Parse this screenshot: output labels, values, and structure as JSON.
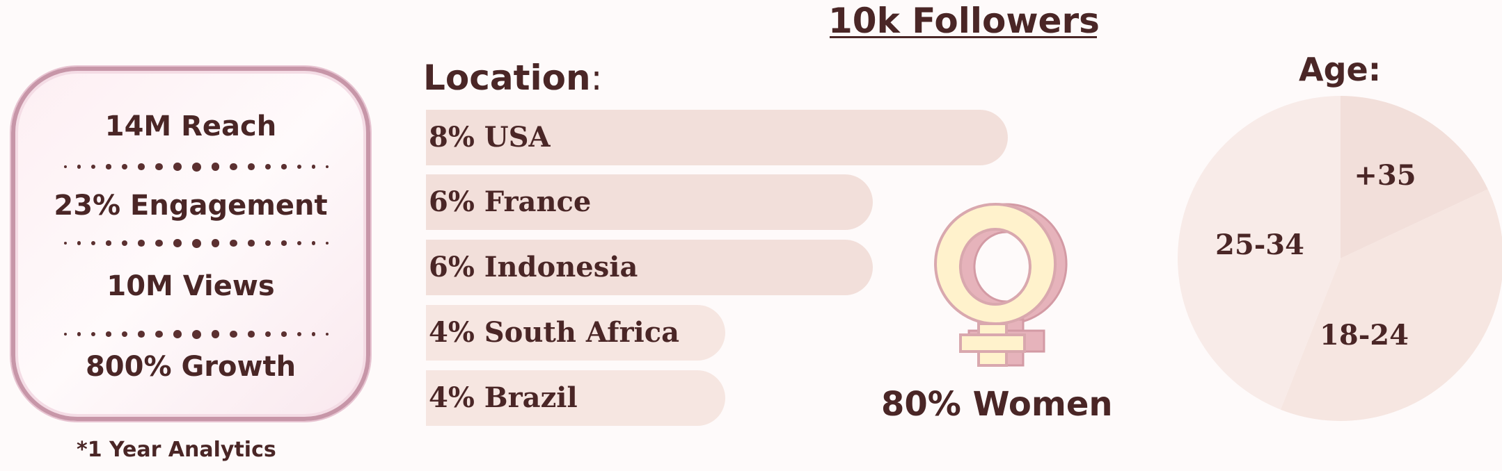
{
  "title": "10k Followers",
  "stats": {
    "reach": "14M Reach",
    "engagement": "23% Engagement",
    "views": "10M Views",
    "growth": "800% Growth",
    "footnote": "*1 Year Analytics"
  },
  "location": {
    "label": "Location",
    "colon": ":"
  },
  "women": {
    "label": "80% Women",
    "icon": "female-symbol-icon"
  },
  "age": {
    "label": "Age:"
  },
  "colors": {
    "text": "#4a2626",
    "bar_dark": "#f2dfda",
    "bar_light": "#f6e6e1",
    "pie_1": "#f2dfda",
    "pie_2": "#f6e6e1",
    "pie_3": "#f8ebe8",
    "symbol_fill": "#fff2cc",
    "symbol_outline": "#d9a8ae"
  },
  "chart_data": [
    {
      "type": "bar",
      "orientation": "horizontal",
      "title": "Location:",
      "categories": [
        "USA",
        "France",
        "Indonesia",
        "South Africa",
        "Brazil"
      ],
      "values": [
        8,
        6,
        6,
        4,
        4
      ],
      "unit": "%",
      "labels": [
        "8% USA",
        "6% France",
        "6% Indonesia",
        "4%  South Africa",
        "4% Brazil"
      ]
    },
    {
      "type": "pie",
      "title": "Age:",
      "categories": [
        "+35",
        "18-24",
        "25-34"
      ],
      "values": [
        18,
        38,
        44
      ]
    }
  ]
}
